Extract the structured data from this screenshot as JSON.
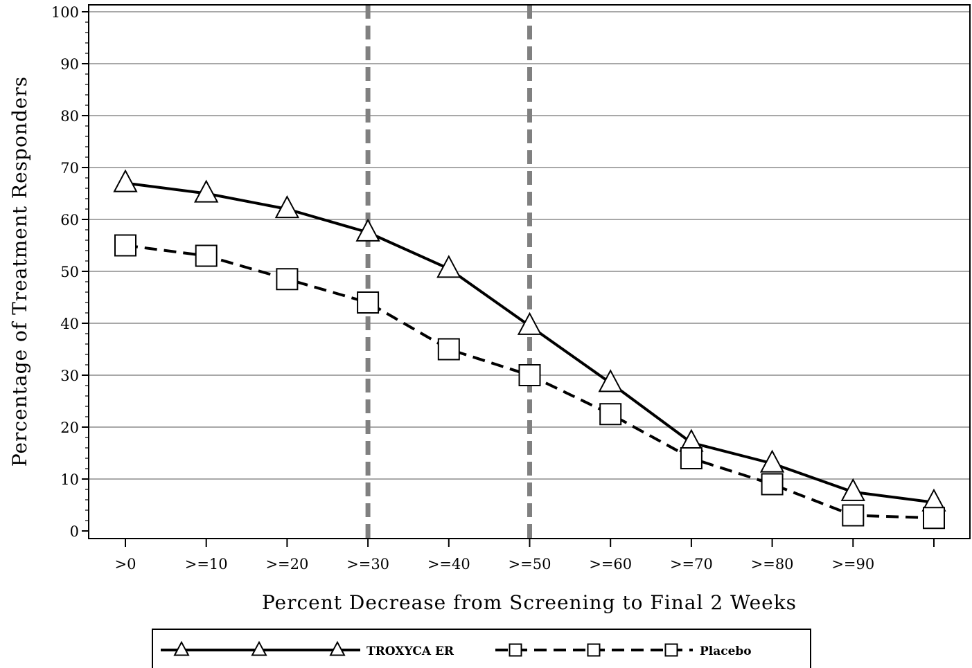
{
  "chart_data": {
    "type": "line",
    "title": "",
    "xlabel": "Percent Decrease from Screening to Final 2 Weeks",
    "ylabel": "Percentage of Treatment Responders",
    "categories": [
      ">0",
      ">=10",
      ">=20",
      ">=30",
      ">=40",
      ">=50",
      ">=60",
      ">=70",
      ">=80",
      ">=90",
      ""
    ],
    "ylim": [
      0,
      100
    ],
    "yticks": [
      "0",
      "10",
      "20",
      "30",
      "40",
      "50",
      "60",
      "70",
      "80",
      "90",
      "100"
    ],
    "grid": true,
    "reference_lines_x": [
      ">=30",
      ">=50"
    ],
    "legend_position": "bottom",
    "series": [
      {
        "name": "TROXYCA ER",
        "marker": "triangle",
        "line_style": "solid",
        "values": [
          67,
          65,
          62,
          57.5,
          50.5,
          39.5,
          28.5,
          17,
          13,
          7.5,
          5.5
        ]
      },
      {
        "name": "Placebo",
        "marker": "square",
        "line_style": "dashed",
        "values": [
          55,
          53,
          48.5,
          44,
          35,
          30,
          22.5,
          14,
          9,
          3,
          2.5
        ]
      }
    ],
    "colors": {
      "lines": "#000000",
      "grid": "#8c8c8c",
      "reference": "#808080"
    }
  }
}
